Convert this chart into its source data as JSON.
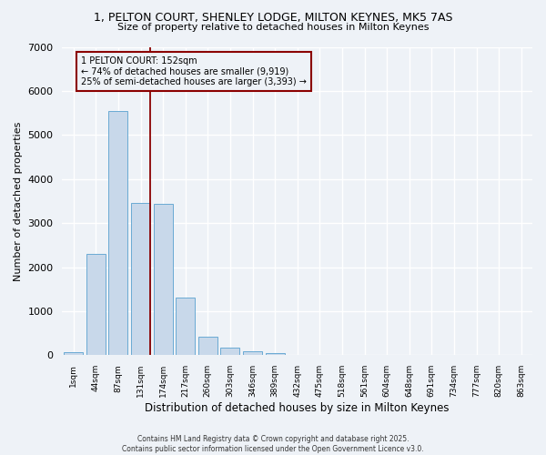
{
  "title_line1": "1, PELTON COURT, SHENLEY LODGE, MILTON KEYNES, MK5 7AS",
  "title_line2": "Size of property relative to detached houses in Milton Keynes",
  "xlabel": "Distribution of detached houses by size in Milton Keynes",
  "ylabel": "Number of detached properties",
  "categories": [
    "1sqm",
    "44sqm",
    "87sqm",
    "131sqm",
    "174sqm",
    "217sqm",
    "260sqm",
    "303sqm",
    "346sqm",
    "389sqm",
    "432sqm",
    "475sqm",
    "518sqm",
    "561sqm",
    "604sqm",
    "648sqm",
    "691sqm",
    "734sqm",
    "777sqm",
    "820sqm",
    "863sqm"
  ],
  "values": [
    70,
    2300,
    5550,
    3450,
    3430,
    1310,
    430,
    170,
    80,
    50,
    0,
    0,
    0,
    0,
    0,
    0,
    0,
    0,
    0,
    0,
    0
  ],
  "bar_color": "#c8d8ea",
  "bar_edge_color": "#6aaad4",
  "vline_color": "#8b0000",
  "annotation_title": "1 PELTON COURT: 152sqm",
  "annotation_line1": "← 74% of detached houses are smaller (9,919)",
  "annotation_line2": "25% of semi-detached houses are larger (3,393) →",
  "annotation_box_color": "#8b0000",
  "ylim": [
    0,
    7000
  ],
  "yticks": [
    0,
    1000,
    2000,
    3000,
    4000,
    5000,
    6000,
    7000
  ],
  "footer_line1": "Contains HM Land Registry data © Crown copyright and database right 2025.",
  "footer_line2": "Contains public sector information licensed under the Open Government Licence v3.0.",
  "background_color": "#eef2f7",
  "grid_color": "#ffffff"
}
